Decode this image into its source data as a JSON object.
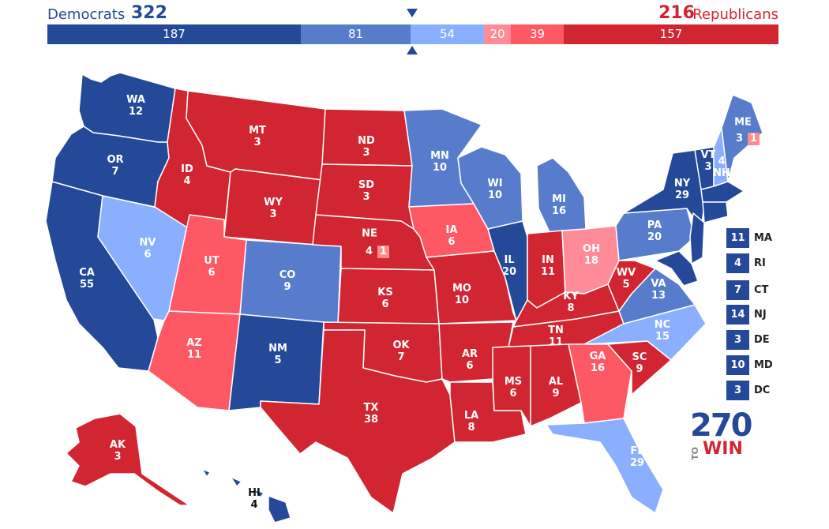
{
  "header": {
    "dem_name": "Democrats",
    "dem_total": "322",
    "rep_total": "216",
    "rep_name": "Republicans"
  },
  "bar": [
    {
      "value": "187",
      "color": "#244999"
    },
    {
      "value": "81",
      "color": "#577ccc"
    },
    {
      "value": "54",
      "color": "#8aafff"
    },
    {
      "value": "20",
      "color": "#ff8b98"
    },
    {
      "value": "39",
      "color": "#ff5865"
    },
    {
      "value": "157",
      "color": "#d22532"
    }
  ],
  "colors": {
    "safe_dem": "#244999",
    "likely_dem": "#577ccc",
    "lean_dem": "#8aafff",
    "tilt_rep": "#ff8b98",
    "lean_rep": "#ff5865",
    "safe_rep": "#d22532"
  },
  "states": {
    "WA": {
      "abbr": "WA",
      "ev": "12"
    },
    "OR": {
      "abbr": "OR",
      "ev": "7"
    },
    "CA": {
      "abbr": "CA",
      "ev": "55"
    },
    "NV": {
      "abbr": "NV",
      "ev": "6"
    },
    "ID": {
      "abbr": "ID",
      "ev": "4"
    },
    "MT": {
      "abbr": "MT",
      "ev": "3"
    },
    "WY": {
      "abbr": "WY",
      "ev": "3"
    },
    "UT": {
      "abbr": "UT",
      "ev": "6"
    },
    "AZ": {
      "abbr": "AZ",
      "ev": "11"
    },
    "CO": {
      "abbr": "CO",
      "ev": "9"
    },
    "NM": {
      "abbr": "NM",
      "ev": "5"
    },
    "ND": {
      "abbr": "ND",
      "ev": "3"
    },
    "SD": {
      "abbr": "SD",
      "ev": "3"
    },
    "NE": {
      "abbr": "NE",
      "ev": "4",
      "split": "1"
    },
    "KS": {
      "abbr": "KS",
      "ev": "6"
    },
    "OK": {
      "abbr": "OK",
      "ev": "7"
    },
    "TX": {
      "abbr": "TX",
      "ev": "38"
    },
    "MN": {
      "abbr": "MN",
      "ev": "10"
    },
    "IA": {
      "abbr": "IA",
      "ev": "6"
    },
    "MO": {
      "abbr": "MO",
      "ev": "10"
    },
    "AR": {
      "abbr": "AR",
      "ev": "6"
    },
    "LA": {
      "abbr": "LA",
      "ev": "8"
    },
    "WI": {
      "abbr": "WI",
      "ev": "10"
    },
    "IL": {
      "abbr": "IL",
      "ev": "20"
    },
    "MI": {
      "abbr": "MI",
      "ev": "16"
    },
    "IN": {
      "abbr": "IN",
      "ev": "11"
    },
    "OH": {
      "abbr": "OH",
      "ev": "18"
    },
    "KY": {
      "abbr": "KY",
      "ev": "8"
    },
    "TN": {
      "abbr": "TN",
      "ev": "11"
    },
    "MS": {
      "abbr": "MS",
      "ev": "6"
    },
    "AL": {
      "abbr": "AL",
      "ev": "9"
    },
    "GA": {
      "abbr": "GA",
      "ev": "16"
    },
    "FL": {
      "abbr": "FL",
      "ev": "29"
    },
    "SC": {
      "abbr": "SC",
      "ev": "9"
    },
    "NC": {
      "abbr": "NC",
      "ev": "15"
    },
    "VA": {
      "abbr": "VA",
      "ev": "13"
    },
    "WV": {
      "abbr": "WV",
      "ev": "5"
    },
    "PA": {
      "abbr": "PA",
      "ev": "20"
    },
    "NY": {
      "abbr": "NY",
      "ev": "29"
    },
    "VT": {
      "abbr": "VT",
      "ev": "3"
    },
    "NH": {
      "abbr": "NH",
      "ev": "4"
    },
    "ME": {
      "abbr": "ME",
      "ev": "3",
      "split": "1"
    },
    "AK": {
      "abbr": "AK",
      "ev": "3"
    },
    "HI": {
      "abbr": "HI",
      "ev": "4"
    }
  },
  "small_states": [
    {
      "ev": "11",
      "abbr": "MA"
    },
    {
      "ev": "4",
      "abbr": "RI"
    },
    {
      "ev": "7",
      "abbr": "CT"
    },
    {
      "ev": "14",
      "abbr": "NJ"
    },
    {
      "ev": "3",
      "abbr": "DE"
    },
    {
      "ev": "10",
      "abbr": "MD"
    },
    {
      "ev": "3",
      "abbr": "DC"
    }
  ],
  "logo": {
    "number": "270",
    "to": "TO",
    "win": "WIN"
  }
}
